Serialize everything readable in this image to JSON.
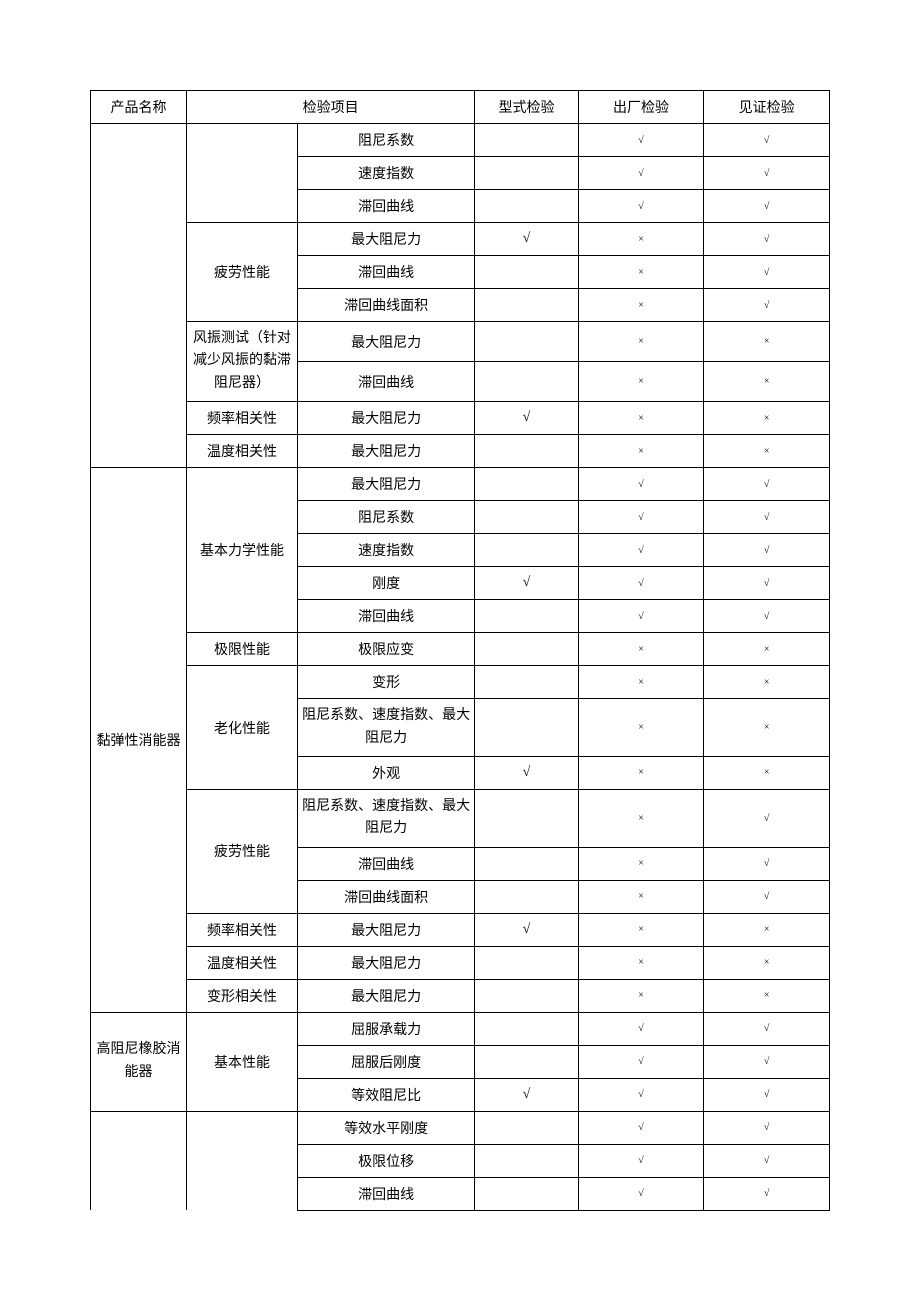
{
  "header": {
    "product": "产品名称",
    "item": "检验项目",
    "type_test": "型式检验",
    "factory_test": "出厂检验",
    "witness_test": "见证检验"
  },
  "marks": {
    "yes": "√",
    "no": "×"
  },
  "products": {
    "p2": "黏弹性消能器",
    "p3": "高阻尼橡胶消能器"
  },
  "groups": {
    "fatigue": "疲劳性能",
    "wind": "风振测试（针对减少风振的黏滞阻尼器）",
    "freq": "频率相关性",
    "temp": "温度相关性",
    "basic_mech": "基本力学性能",
    "limit": "极限性能",
    "aging": "老化性能",
    "deform": "变形相关性",
    "basic": "基本性能"
  },
  "items": {
    "damping_coef": "阻尼系数",
    "speed_idx": "速度指数",
    "hysteresis": "滞回曲线",
    "max_damp": "最大阻尼力",
    "hyst_area": "滞回曲线面积",
    "stiffness": "刚度",
    "limit_strain": "极限应变",
    "deformation": "变形",
    "combo": "阻尼系数、速度指数、最大阻尼力",
    "appearance": "外观",
    "yield_cap": "屈服承载力",
    "post_yield_stiff": "屈服后刚度",
    "eq_damp_ratio": "等效阻尼比",
    "eq_horiz_stiff": "等效水平刚度",
    "limit_disp": "极限位移"
  },
  "rows": [
    {
      "cells": [
        {
          "k": "header.product"
        },
        {
          "k": "header.item",
          "span": 2
        },
        {
          "k": "header.type_test"
        },
        {
          "k": "header.factory_test"
        },
        {
          "k": "header.witness_test"
        }
      ],
      "head": true
    },
    {
      "cells": [
        {
          "blank": true,
          "rs": 10,
          "open_top": true,
          "open_bottom": true
        },
        {
          "blank": true,
          "rs": 3,
          "open_top": true
        },
        {
          "k": "items.damping_coef"
        },
        {
          "blank": true
        },
        {
          "mk": "yes"
        },
        {
          "mk": "yes"
        }
      ]
    },
    {
      "cells": [
        {
          "k": "items.speed_idx"
        },
        {
          "blank": true
        },
        {
          "mk": "yes"
        },
        {
          "mk": "yes"
        }
      ]
    },
    {
      "cells": [
        {
          "k": "items.hysteresis"
        },
        {
          "blank": true
        },
        {
          "mk": "yes"
        },
        {
          "mk": "yes"
        }
      ]
    },
    {
      "cells": [
        {
          "k": "groups.fatigue",
          "rs": 3
        },
        {
          "k": "items.max_damp"
        },
        {
          "mk": "yes",
          "big": true
        },
        {
          "mk": "no"
        },
        {
          "mk": "yes"
        }
      ]
    },
    {
      "cells": [
        {
          "k": "items.hysteresis"
        },
        {
          "blank": true
        },
        {
          "mk": "no"
        },
        {
          "mk": "yes"
        }
      ]
    },
    {
      "cells": [
        {
          "k": "items.hyst_area"
        },
        {
          "blank": true
        },
        {
          "mk": "no"
        },
        {
          "mk": "yes"
        }
      ]
    },
    {
      "cells": [
        {
          "k": "groups.wind",
          "rs": 2,
          "wrap": true
        },
        {
          "k": "items.max_damp"
        },
        {
          "blank": true
        },
        {
          "mk": "no"
        },
        {
          "mk": "no"
        }
      ]
    },
    {
      "cells": [
        {
          "k": "items.hysteresis"
        },
        {
          "blank": true
        },
        {
          "mk": "no"
        },
        {
          "mk": "no"
        }
      ]
    },
    {
      "cells": [
        {
          "k": "groups.freq"
        },
        {
          "k": "items.max_damp"
        },
        {
          "mk": "yes",
          "big": true
        },
        {
          "mk": "no"
        },
        {
          "mk": "no"
        }
      ]
    },
    {
      "cells": [
        {
          "k": "groups.temp"
        },
        {
          "k": "items.max_damp"
        },
        {
          "blank": true
        },
        {
          "mk": "no"
        },
        {
          "mk": "no"
        }
      ]
    },
    {
      "cells": [
        {
          "k": "products.p2",
          "rs": 15
        },
        {
          "k": "groups.basic_mech",
          "rs": 5
        },
        {
          "k": "items.max_damp"
        },
        {
          "blank": true
        },
        {
          "mk": "yes"
        },
        {
          "mk": "yes"
        }
      ]
    },
    {
      "cells": [
        {
          "k": "items.damping_coef"
        },
        {
          "blank": true
        },
        {
          "mk": "yes"
        },
        {
          "mk": "yes"
        }
      ]
    },
    {
      "cells": [
        {
          "k": "items.speed_idx"
        },
        {
          "blank": true
        },
        {
          "mk": "yes"
        },
        {
          "mk": "yes"
        }
      ]
    },
    {
      "cells": [
        {
          "k": "items.stiffness"
        },
        {
          "mk": "yes",
          "big": true
        },
        {
          "mk": "yes"
        },
        {
          "mk": "yes"
        }
      ]
    },
    {
      "cells": [
        {
          "k": "items.hysteresis"
        },
        {
          "blank": true
        },
        {
          "mk": "yes"
        },
        {
          "mk": "yes"
        }
      ]
    },
    {
      "cells": [
        {
          "k": "groups.limit"
        },
        {
          "k": "items.limit_strain"
        },
        {
          "blank": true
        },
        {
          "mk": "no"
        },
        {
          "mk": "no"
        }
      ]
    },
    {
      "cells": [
        {
          "k": "groups.aging",
          "rs": 3
        },
        {
          "k": "items.deformation"
        },
        {
          "blank": true
        },
        {
          "mk": "no"
        },
        {
          "mk": "no"
        }
      ]
    },
    {
      "cells": [
        {
          "k": "items.combo",
          "wrap": true
        },
        {
          "blank": true
        },
        {
          "mk": "no"
        },
        {
          "mk": "no"
        }
      ]
    },
    {
      "cells": [
        {
          "k": "items.appearance"
        },
        {
          "mk": "yes",
          "big": true
        },
        {
          "mk": "no"
        },
        {
          "mk": "no"
        }
      ]
    },
    {
      "cells": [
        {
          "k": "groups.fatigue",
          "rs": 3
        },
        {
          "k": "items.combo",
          "wrap": true
        },
        {
          "blank": true
        },
        {
          "mk": "no"
        },
        {
          "mk": "yes"
        }
      ]
    },
    {
      "cells": [
        {
          "k": "items.hysteresis"
        },
        {
          "blank": true
        },
        {
          "mk": "no"
        },
        {
          "mk": "yes"
        }
      ]
    },
    {
      "cells": [
        {
          "k": "items.hyst_area"
        },
        {
          "blank": true
        },
        {
          "mk": "no"
        },
        {
          "mk": "yes"
        }
      ]
    },
    {
      "cells": [
        {
          "k": "groups.freq"
        },
        {
          "k": "items.max_damp"
        },
        {
          "mk": "yes",
          "big": true
        },
        {
          "mk": "no"
        },
        {
          "mk": "no"
        }
      ]
    },
    {
      "cells": [
        {
          "k": "groups.temp"
        },
        {
          "k": "items.max_damp"
        },
        {
          "blank": true
        },
        {
          "mk": "no"
        },
        {
          "mk": "no"
        }
      ]
    },
    {
      "cells": [
        {
          "k": "groups.deform"
        },
        {
          "k": "items.max_damp"
        },
        {
          "blank": true
        },
        {
          "mk": "no"
        },
        {
          "mk": "no"
        }
      ]
    },
    {
      "cells": [
        {
          "k": "products.p3",
          "rs": 3,
          "wrap": true
        },
        {
          "k": "groups.basic",
          "rs": 3
        },
        {
          "k": "items.yield_cap"
        },
        {
          "blank": true
        },
        {
          "mk": "yes"
        },
        {
          "mk": "yes"
        }
      ]
    },
    {
      "cells": [
        {
          "k": "items.post_yield_stiff"
        },
        {
          "blank": true
        },
        {
          "mk": "yes"
        },
        {
          "mk": "yes"
        }
      ]
    },
    {
      "cells": [
        {
          "k": "items.eq_damp_ratio"
        },
        {
          "mk": "yes",
          "big": true
        },
        {
          "mk": "yes"
        },
        {
          "mk": "yes"
        }
      ]
    },
    {
      "cells": [
        {
          "blank": true,
          "rs": 3,
          "open_bottom": true
        },
        {
          "blank": true,
          "rs": 3,
          "open_bottom": true
        },
        {
          "k": "items.eq_horiz_stiff"
        },
        {
          "blank": true
        },
        {
          "mk": "yes"
        },
        {
          "mk": "yes"
        }
      ]
    },
    {
      "cells": [
        {
          "k": "items.limit_disp"
        },
        {
          "blank": true
        },
        {
          "mk": "yes"
        },
        {
          "mk": "yes"
        }
      ]
    },
    {
      "cells": [
        {
          "k": "items.hysteresis"
        },
        {
          "blank": true
        },
        {
          "mk": "yes"
        },
        {
          "mk": "yes"
        }
      ]
    }
  ]
}
